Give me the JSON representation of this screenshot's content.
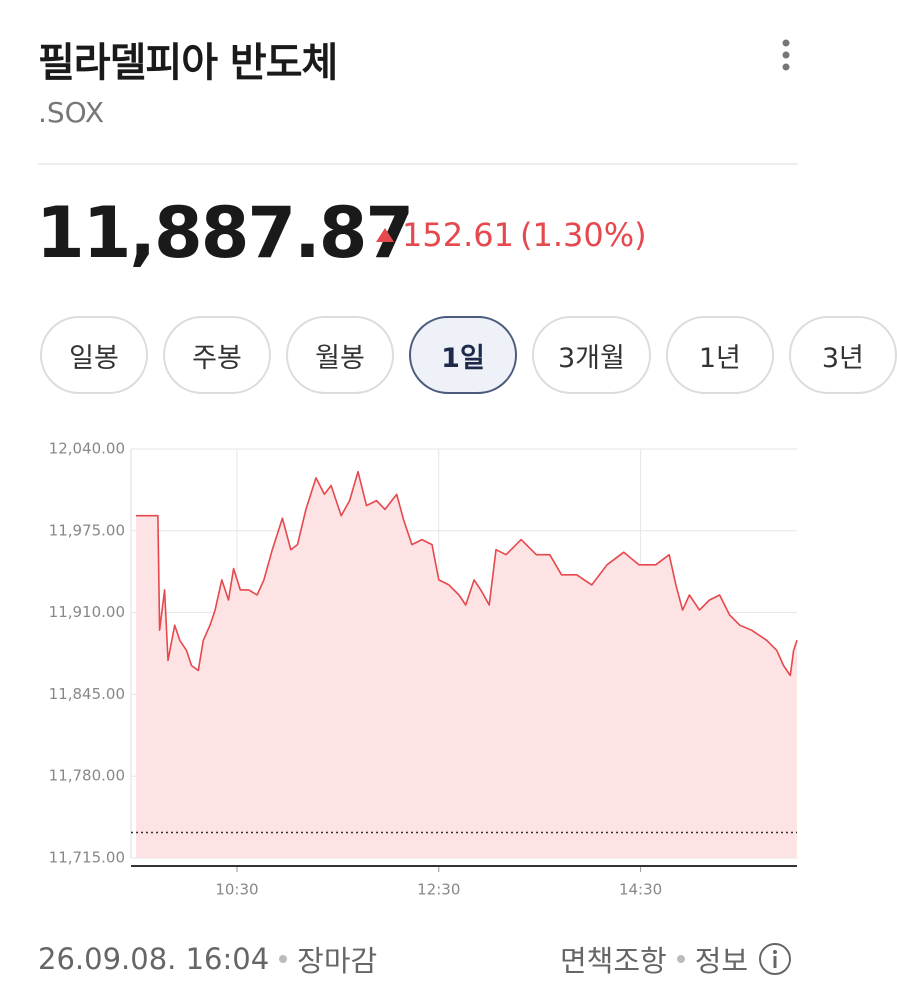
{
  "header": {
    "title": "필라델피아 반도체",
    "code": ".SOX"
  },
  "quote": {
    "price": "11,887.87",
    "change": "152.61",
    "change_percent": "(1.30%)"
  },
  "tabs": {
    "items": [
      "일봉",
      "주봉",
      "월봉",
      "1일",
      "3개월",
      "1년",
      "3년"
    ],
    "selected": 3
  },
  "chart_data": {
    "type": "line",
    "color": "#e5484d",
    "fill": "#fde3e3",
    "grid": true,
    "x": [
      "09:30",
      "09:43",
      "09:44",
      "09:47",
      "09:49",
      "09:53",
      "09:56",
      "10:00",
      "10:03",
      "10:07",
      "10:10",
      "10:14",
      "10:17",
      "10:21",
      "10:25",
      "10:28",
      "10:32",
      "10:37",
      "10:42",
      "10:46",
      "10:51",
      "10:57",
      "11:02",
      "11:06",
      "11:11",
      "11:17",
      "11:22",
      "11:26",
      "11:32",
      "11:37",
      "11:42",
      "11:47",
      "11:53",
      "11:58",
      "12:05",
      "12:09",
      "12:14",
      "12:20",
      "12:26",
      "12:30",
      "12:36",
      "12:42",
      "12:46",
      "12:51",
      "12:55",
      "13:00",
      "13:04",
      "13:10",
      "13:19",
      "13:28",
      "13:36",
      "13:43",
      "13:52",
      "14:01",
      "14:10",
      "14:20",
      "14:29",
      "14:39",
      "14:47",
      "14:51",
      "14:55",
      "14:59",
      "15:05",
      "15:11",
      "15:17",
      "15:23",
      "15:29",
      "15:36",
      "15:45",
      "15:51",
      "15:55",
      "15:59",
      "16:01",
      "16:03"
    ],
    "values": [
      11987,
      11987,
      11896,
      11928,
      11872,
      11900,
      11888,
      11880,
      11868,
      11864,
      11888,
      11900,
      11912,
      11936,
      11920,
      11945,
      11928,
      11928,
      11924,
      11936,
      11960,
      11985,
      11960,
      11964,
      11992,
      12017,
      12004,
      12011,
      11987,
      11999,
      12022,
      11995,
      11999,
      11992,
      12004,
      11984,
      11964,
      11968,
      11964,
      11936,
      11932,
      11924,
      11916,
      11936,
      11928,
      11916,
      11960,
      11956,
      11968,
      11956,
      11956,
      11940,
      11940,
      11932,
      11948,
      11958,
      11948,
      11948,
      11956,
      11932,
      11912,
      11924,
      11912,
      11920,
      11924,
      11908,
      11900,
      11896,
      11888,
      11880,
      11868,
      11860,
      11880,
      11888
    ],
    "baseline": 11735.26,
    "xlim": [
      "09:27",
      "16:03"
    ],
    "xticks": [
      "10:30",
      "12:30",
      "14:30"
    ],
    "ylim": [
      11715,
      12040
    ],
    "yticks": [
      {
        "value": 11715,
        "label": "11,715.00"
      },
      {
        "value": 11780,
        "label": "11,780.00"
      },
      {
        "value": 11845,
        "label": "11,845.00"
      },
      {
        "value": 11910,
        "label": "11,910.00"
      },
      {
        "value": 11975,
        "label": "11,975.00"
      },
      {
        "value": 12040,
        "label": "12,040.00"
      }
    ]
  },
  "footer": {
    "timestamp": "26.09.08. 16:04",
    "status": "장마감",
    "disclaimer": "면책조항",
    "info": "정보"
  }
}
